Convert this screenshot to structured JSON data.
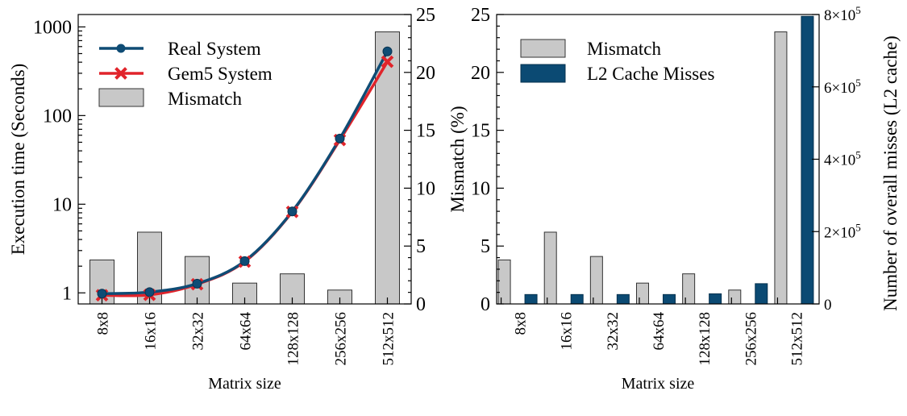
{
  "colors": {
    "mismatch_fill": "#c8c8c8",
    "mismatch_stroke": "#333333",
    "real_system": "#0f4c75",
    "gem5_system": "#e1242b",
    "l2_misses": "#0b4a73"
  },
  "chart_data": [
    {
      "type": "bar+line",
      "x_tick_labels": [
        "8x8",
        "16x16",
        "32x32",
        "64x64",
        "128x128",
        "256x256",
        "512x512"
      ],
      "xlabel": "Matrix size",
      "ylabel_left": "Execution time (Seconds)",
      "y_left_scale": "log",
      "y_left_ticks": [
        "1",
        "10",
        "100",
        "1000"
      ],
      "y_left_range": [
        0.75,
        1380
      ],
      "y_right_ticks": [
        "0",
        "5",
        "10",
        "15",
        "20",
        "25"
      ],
      "y_right_range": [
        0,
        25
      ],
      "legend_position": "top-left",
      "series": [
        {
          "name": "Real System",
          "kind": "line",
          "axis": "left",
          "values": [
            0.98,
            1.02,
            1.27,
            2.28,
            8.3,
            55,
            530
          ]
        },
        {
          "name": "Gem5 System",
          "kind": "line",
          "axis": "left",
          "values": [
            0.94,
            0.95,
            1.25,
            2.25,
            8.2,
            53,
            405
          ]
        },
        {
          "name": "Mismatch",
          "kind": "bar",
          "axis": "right",
          "values": [
            3.8,
            6.2,
            4.1,
            1.8,
            2.6,
            1.2,
            23.5
          ]
        }
      ]
    },
    {
      "type": "bar",
      "x_tick_labels": [
        "8x8",
        "16x16",
        "32x32",
        "64x64",
        "128x128",
        "256x256",
        "512x512"
      ],
      "xlabel": "Matrix size",
      "ylabel_left": "Mismatch (%)",
      "ylabel_right": "Number of overall misses (L2 cache)",
      "y_left_ticks": [
        "0",
        "5",
        "10",
        "15",
        "20",
        "25"
      ],
      "y_left_range": [
        0,
        25
      ],
      "y_right_ticks": [
        {
          "base": "0",
          "exp": ""
        },
        {
          "base": "2×10",
          "exp": "5"
        },
        {
          "base": "4×10",
          "exp": "5"
        },
        {
          "base": "6×10",
          "exp": "5"
        },
        {
          "base": "8×10",
          "exp": "5"
        }
      ],
      "y_right_range": [
        0,
        800000
      ],
      "legend_position": "top-left",
      "series": [
        {
          "name": "Mismatch",
          "axis": "left",
          "values": [
            3.8,
            6.2,
            4.1,
            1.8,
            2.6,
            1.2,
            23.5
          ]
        },
        {
          "name": "L2 Cache Misses",
          "axis": "right",
          "values": [
            26000,
            26000,
            26000,
            26000,
            28000,
            56000,
            795000
          ]
        }
      ]
    }
  ]
}
